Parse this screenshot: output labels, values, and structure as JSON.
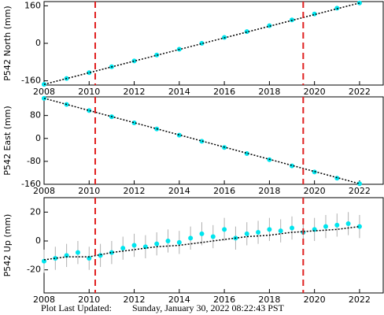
{
  "chart_data": [
    {
      "type": "scatter",
      "ylabel": "P542 North (mm)",
      "xlim": [
        2008,
        2023.05
      ],
      "ylim": [
        -178,
        178
      ],
      "xticks": [
        2008,
        2010,
        2012,
        2014,
        2016,
        2018,
        2020,
        2022
      ],
      "yticks": [
        -160,
        0,
        160
      ],
      "vlines": [
        2010.27,
        2019.5
      ],
      "vline_color": "#e02020",
      "series": [
        {
          "color": "#00e5ee",
          "x": [
            2008,
            2009,
            2010,
            2011,
            2012,
            2013,
            2014,
            2015,
            2016,
            2017,
            2018,
            2019,
            2020,
            2021,
            2022
          ],
          "values": [
            -175,
            -150,
            -125,
            -100,
            -75,
            -50,
            -25,
            0,
            25,
            50,
            75,
            100,
            125,
            150,
            172
          ]
        },
        {
          "color": "#000000",
          "style": "line",
          "x": [
            2008,
            2022
          ],
          "values": [
            -175,
            172
          ]
        }
      ]
    },
    {
      "type": "scatter",
      "ylabel": "P542 East (mm)",
      "xlim": [
        2008,
        2023.05
      ],
      "ylim": [
        -160,
        145
      ],
      "xticks": [
        2008,
        2010,
        2012,
        2014,
        2016,
        2018,
        2020,
        2022
      ],
      "yticks": [
        -160,
        -80,
        0,
        80
      ],
      "vlines": [
        2010.27,
        2019.5
      ],
      "vline_color": "#e02020",
      "series": [
        {
          "color": "#00e5ee",
          "x": [
            2008,
            2009,
            2010,
            2011,
            2012,
            2013,
            2014,
            2015,
            2016,
            2017,
            2018,
            2019,
            2020,
            2021,
            2022
          ],
          "values": [
            140,
            118.6,
            97.1,
            75.7,
            54.3,
            32.9,
            11.4,
            -10,
            -31.4,
            -52.9,
            -74.3,
            -95.7,
            -117.1,
            -138.6,
            -158
          ]
        },
        {
          "color": "#000000",
          "style": "line",
          "x": [
            2008,
            2022
          ],
          "values": [
            140,
            -158
          ]
        }
      ]
    },
    {
      "type": "scatter",
      "ylabel": "P542 Up (mm)",
      "xlim": [
        2008,
        2023.05
      ],
      "ylim": [
        -36,
        30
      ],
      "xticks": [
        2008,
        2010,
        2012,
        2014,
        2016,
        2018,
        2020,
        2022
      ],
      "yticks": [
        -20,
        0,
        20
      ],
      "vlines": [
        2010.27,
        2019.5
      ],
      "vline_color": "#e02020",
      "series": [
        {
          "color": "#00e5ee",
          "error_color": "#b0b0b0",
          "x": [
            2008,
            2008.5,
            2009,
            2009.5,
            2010,
            2010.5,
            2011,
            2011.5,
            2012,
            2012.5,
            2013,
            2013.5,
            2014,
            2014.5,
            2015,
            2015.5,
            2016,
            2016.5,
            2017,
            2017.5,
            2018,
            2018.5,
            2019,
            2019.5,
            2020,
            2020.5,
            2021,
            2021.5,
            2022
          ],
          "values": [
            -14,
            -12,
            -10,
            -8,
            -12,
            -10,
            -8,
            -5,
            -3,
            -4,
            -2,
            0,
            -1,
            2,
            5,
            3,
            8,
            2,
            5,
            6,
            8,
            7,
            9,
            6,
            8,
            10,
            11,
            12,
            10
          ],
          "errors": [
            8,
            8,
            8,
            8,
            8,
            8,
            8,
            8,
            8,
            8,
            8,
            8,
            8,
            8,
            8,
            8,
            8,
            8,
            8,
            8,
            8,
            8,
            8,
            8,
            8,
            8,
            8,
            8,
            8
          ]
        },
        {
          "color": "#000000",
          "style": "line",
          "x": [
            2008,
            2009,
            2010,
            2011,
            2012,
            2013,
            2014,
            2015,
            2016,
            2017,
            2018,
            2019,
            2020,
            2021,
            2022
          ],
          "values": [
            -13,
            -11,
            -11,
            -8,
            -6,
            -4,
            -3,
            -1,
            1,
            3,
            4,
            6,
            7,
            8,
            10
          ]
        }
      ]
    }
  ],
  "footer": {
    "label": "Plot Last Updated:",
    "value": "Sunday, January 30, 2022 08:22:43 PST"
  }
}
